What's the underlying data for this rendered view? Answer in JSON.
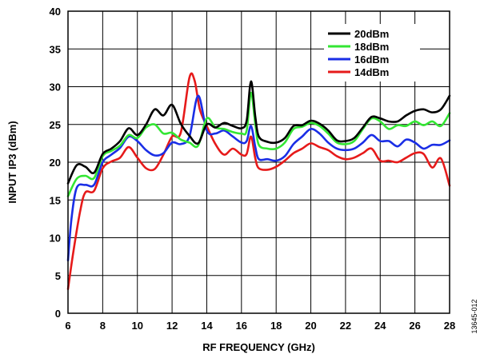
{
  "chart_data": {
    "type": "line",
    "xlabel": "RF FREQUENCY (GHz)",
    "ylabel": "INPUT IP3 (dBm)",
    "xlim": [
      6,
      28
    ],
    "ylim": [
      0,
      40
    ],
    "xticks": [
      6,
      8,
      10,
      12,
      14,
      16,
      18,
      20,
      22,
      24,
      26,
      28
    ],
    "yticks": [
      0,
      5,
      10,
      15,
      20,
      25,
      30,
      35,
      40
    ],
    "grid": true,
    "legend_position": "top-right",
    "figure_code": "13645-012",
    "series": [
      {
        "name": "20dBm",
        "color": "#000000",
        "points": [
          [
            6.0,
            17.2
          ],
          [
            6.5,
            19.6
          ],
          [
            7.0,
            19.4
          ],
          [
            7.5,
            18.6
          ],
          [
            8.0,
            21.1
          ],
          [
            8.5,
            21.8
          ],
          [
            9.0,
            22.8
          ],
          [
            9.5,
            24.5
          ],
          [
            10.0,
            23.6
          ],
          [
            10.5,
            25.0
          ],
          [
            11.0,
            27.0
          ],
          [
            11.5,
            26.2
          ],
          [
            12.0,
            27.6
          ],
          [
            12.5,
            25.1
          ],
          [
            13.0,
            23.5
          ],
          [
            13.5,
            22.5
          ],
          [
            14.0,
            25.0
          ],
          [
            14.5,
            24.6
          ],
          [
            15.0,
            25.2
          ],
          [
            15.5,
            24.8
          ],
          [
            16.0,
            24.5
          ],
          [
            16.3,
            25.5
          ],
          [
            16.55,
            30.7
          ],
          [
            16.8,
            26.0
          ],
          [
            17.0,
            23.4
          ],
          [
            17.5,
            22.7
          ],
          [
            18.0,
            22.6
          ],
          [
            18.5,
            23.2
          ],
          [
            19.0,
            24.8
          ],
          [
            19.5,
            24.9
          ],
          [
            20.0,
            25.5
          ],
          [
            20.5,
            25.1
          ],
          [
            21.0,
            24.2
          ],
          [
            21.5,
            22.9
          ],
          [
            22.0,
            22.8
          ],
          [
            22.5,
            23.2
          ],
          [
            23.0,
            24.6
          ],
          [
            23.5,
            26.0
          ],
          [
            24.0,
            25.8
          ],
          [
            24.5,
            25.4
          ],
          [
            25.0,
            25.4
          ],
          [
            25.5,
            26.2
          ],
          [
            26.0,
            26.8
          ],
          [
            26.5,
            27.0
          ],
          [
            27.0,
            26.6
          ],
          [
            27.5,
            27.0
          ],
          [
            28.0,
            28.8
          ]
        ]
      },
      {
        "name": "18dBm",
        "color": "#33e633",
        "points": [
          [
            6.0,
            15.5
          ],
          [
            6.5,
            17.8
          ],
          [
            7.0,
            18.2
          ],
          [
            7.5,
            17.9
          ],
          [
            8.0,
            20.8
          ],
          [
            8.5,
            21.5
          ],
          [
            9.0,
            22.2
          ],
          [
            9.5,
            23.6
          ],
          [
            10.0,
            23.2
          ],
          [
            10.5,
            24.6
          ],
          [
            11.0,
            25.0
          ],
          [
            11.5,
            23.8
          ],
          [
            12.0,
            23.9
          ],
          [
            12.5,
            23.0
          ],
          [
            13.0,
            22.6
          ],
          [
            13.5,
            22.2
          ],
          [
            14.0,
            25.8
          ],
          [
            14.5,
            24.6
          ],
          [
            15.0,
            24.4
          ],
          [
            15.5,
            24.0
          ],
          [
            16.0,
            23.8
          ],
          [
            16.3,
            24.2
          ],
          [
            16.55,
            29.2
          ],
          [
            16.8,
            25.0
          ],
          [
            17.0,
            22.3
          ],
          [
            17.5,
            21.8
          ],
          [
            18.0,
            21.8
          ],
          [
            18.5,
            22.6
          ],
          [
            19.0,
            24.4
          ],
          [
            19.5,
            24.7
          ],
          [
            20.0,
            25.2
          ],
          [
            20.5,
            24.8
          ],
          [
            21.0,
            23.8
          ],
          [
            21.5,
            22.6
          ],
          [
            22.0,
            22.4
          ],
          [
            22.5,
            22.8
          ],
          [
            23.0,
            24.4
          ],
          [
            23.5,
            25.8
          ],
          [
            24.0,
            25.4
          ],
          [
            24.5,
            24.4
          ],
          [
            25.0,
            24.9
          ],
          [
            25.5,
            24.8
          ],
          [
            26.0,
            25.4
          ],
          [
            26.5,
            24.9
          ],
          [
            27.0,
            25.4
          ],
          [
            27.5,
            24.8
          ],
          [
            28.0,
            26.5
          ]
        ]
      },
      {
        "name": "16dBm",
        "color": "#1a2ee6",
        "points": [
          [
            6.0,
            7.0
          ],
          [
            6.2,
            12.5
          ],
          [
            6.5,
            16.6
          ],
          [
            7.0,
            17.0
          ],
          [
            7.5,
            17.0
          ],
          [
            8.0,
            20.0
          ],
          [
            8.5,
            21.0
          ],
          [
            9.0,
            21.9
          ],
          [
            9.5,
            23.4
          ],
          [
            10.0,
            22.8
          ],
          [
            10.5,
            21.6
          ],
          [
            11.0,
            20.9
          ],
          [
            11.5,
            21.2
          ],
          [
            12.0,
            22.6
          ],
          [
            12.5,
            22.4
          ],
          [
            13.0,
            23.4
          ],
          [
            13.5,
            28.8
          ],
          [
            14.0,
            24.2
          ],
          [
            14.5,
            23.8
          ],
          [
            15.0,
            24.2
          ],
          [
            15.5,
            23.4
          ],
          [
            16.0,
            22.6
          ],
          [
            16.3,
            22.8
          ],
          [
            16.55,
            24.8
          ],
          [
            16.8,
            22.0
          ],
          [
            17.0,
            20.4
          ],
          [
            17.5,
            20.4
          ],
          [
            18.0,
            20.2
          ],
          [
            18.5,
            20.8
          ],
          [
            19.0,
            22.4
          ],
          [
            19.5,
            23.4
          ],
          [
            20.0,
            24.4
          ],
          [
            20.5,
            23.8
          ],
          [
            21.0,
            22.6
          ],
          [
            21.5,
            21.8
          ],
          [
            22.0,
            21.6
          ],
          [
            22.5,
            21.8
          ],
          [
            23.0,
            22.6
          ],
          [
            23.5,
            23.6
          ],
          [
            24.0,
            22.8
          ],
          [
            24.5,
            22.8
          ],
          [
            25.0,
            22.1
          ],
          [
            25.5,
            23.0
          ],
          [
            26.0,
            22.6
          ],
          [
            26.5,
            21.8
          ],
          [
            27.0,
            22.3
          ],
          [
            27.5,
            22.3
          ],
          [
            28.0,
            22.9
          ]
        ]
      },
      {
        "name": "14dBm",
        "color": "#e61a1a",
        "points": [
          [
            6.0,
            3.2
          ],
          [
            6.3,
            8.0
          ],
          [
            6.7,
            13.5
          ],
          [
            7.0,
            16.0
          ],
          [
            7.5,
            16.2
          ],
          [
            8.0,
            19.2
          ],
          [
            8.5,
            20.1
          ],
          [
            9.0,
            20.6
          ],
          [
            9.5,
            22.0
          ],
          [
            10.0,
            20.6
          ],
          [
            10.5,
            19.2
          ],
          [
            11.0,
            19.1
          ],
          [
            11.5,
            21.0
          ],
          [
            12.0,
            23.4
          ],
          [
            12.5,
            23.9
          ],
          [
            13.0,
            31.2
          ],
          [
            13.3,
            30.8
          ],
          [
            13.6,
            27.0
          ],
          [
            14.0,
            24.8
          ],
          [
            14.5,
            22.4
          ],
          [
            15.0,
            21.0
          ],
          [
            15.5,
            21.8
          ],
          [
            16.0,
            21.0
          ],
          [
            16.3,
            21.1
          ],
          [
            16.55,
            23.4
          ],
          [
            16.8,
            20.5
          ],
          [
            17.0,
            19.2
          ],
          [
            17.5,
            19.0
          ],
          [
            18.0,
            19.4
          ],
          [
            18.5,
            20.2
          ],
          [
            19.0,
            21.2
          ],
          [
            19.5,
            21.8
          ],
          [
            20.0,
            22.5
          ],
          [
            20.5,
            22.0
          ],
          [
            21.0,
            21.6
          ],
          [
            21.5,
            20.8
          ],
          [
            22.0,
            20.4
          ],
          [
            22.5,
            20.6
          ],
          [
            23.0,
            21.2
          ],
          [
            23.5,
            21.8
          ],
          [
            24.0,
            20.2
          ],
          [
            24.5,
            20.2
          ],
          [
            25.0,
            20.0
          ],
          [
            25.5,
            20.6
          ],
          [
            26.0,
            21.2
          ],
          [
            26.5,
            21.1
          ],
          [
            27.0,
            19.3
          ],
          [
            27.5,
            20.5
          ],
          [
            28.0,
            16.9
          ]
        ]
      }
    ]
  }
}
